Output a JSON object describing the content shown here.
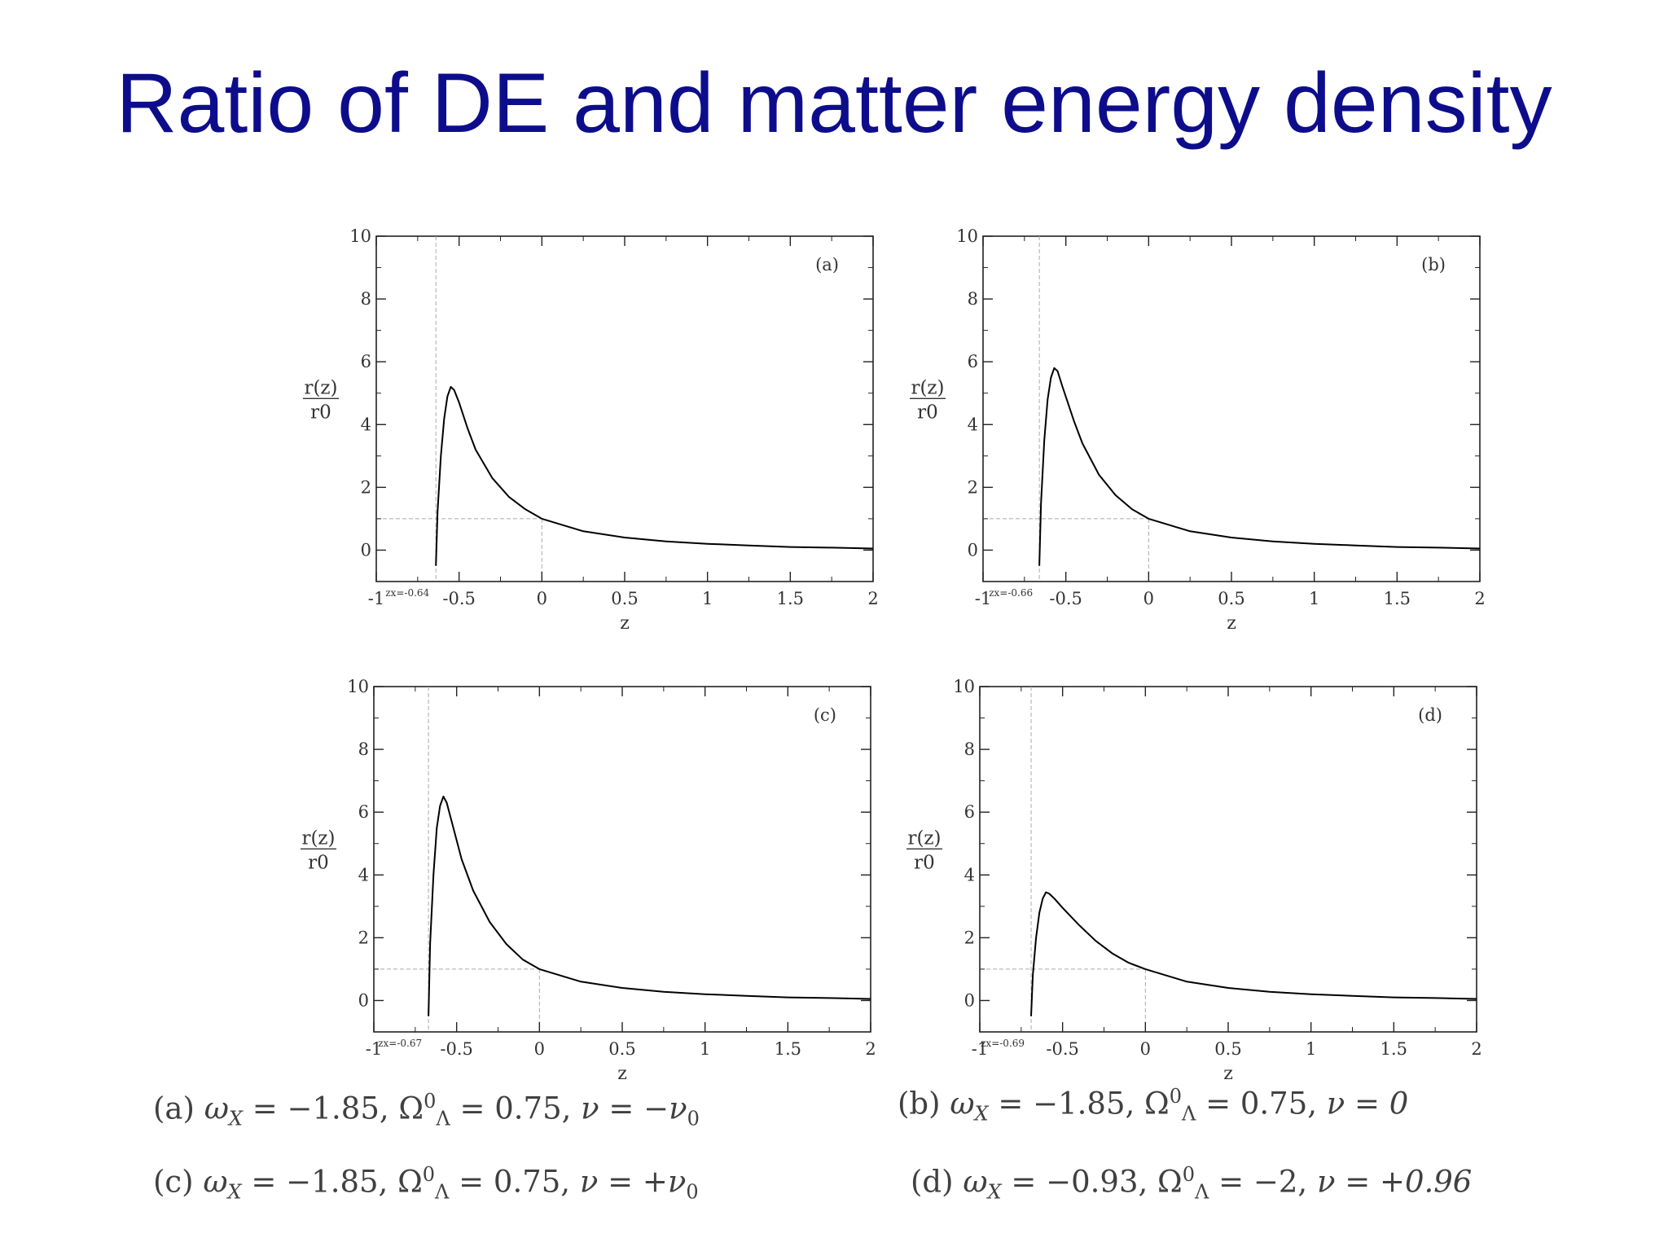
{
  "title": "Ratio of DE and matter energy density",
  "chart_data": [
    {
      "type": "line",
      "panel_label": "(a)",
      "xlabel": "z",
      "ylabel": "r(z)",
      "ylabel_den": "r0",
      "xlim": [
        -1,
        2
      ],
      "ylim": [
        -1,
        10
      ],
      "xticks": [
        -1,
        -0.5,
        0,
        0.5,
        1,
        1.5,
        2
      ],
      "xtick_labels": [
        "-1",
        "-0.5",
        "0",
        "0.5",
        "1",
        "1.5",
        "2"
      ],
      "yticks": [
        0,
        2,
        4,
        6,
        8,
        10
      ],
      "ytick_labels": [
        "0",
        "2",
        "4",
        "6",
        "8",
        "10"
      ],
      "zx": -0.64,
      "zx_label": "zx=-0.64",
      "series": [
        {
          "x": [
            -0.64,
            -0.63,
            -0.61,
            -0.59,
            -0.57,
            -0.55,
            -0.53,
            -0.5,
            -0.45,
            -0.4,
            -0.3,
            -0.2,
            -0.1,
            0,
            0.25,
            0.5,
            0.75,
            1,
            1.25,
            1.5,
            1.75,
            2
          ],
          "y": [
            -0.5,
            1.2,
            3.0,
            4.2,
            4.9,
            5.2,
            5.1,
            4.7,
            3.9,
            3.2,
            2.3,
            1.7,
            1.3,
            1.0,
            0.6,
            0.4,
            0.28,
            0.2,
            0.15,
            0.1,
            0.08,
            0.05
          ]
        }
      ]
    },
    {
      "type": "line",
      "panel_label": "(b)",
      "xlabel": "z",
      "ylabel": "r(z)",
      "ylabel_den": "r0",
      "xlim": [
        -1,
        2
      ],
      "ylim": [
        -1,
        10
      ],
      "xticks": [
        -1,
        -0.5,
        0,
        0.5,
        1,
        1.5,
        2
      ],
      "xtick_labels": [
        "-1",
        "-0.5",
        "0",
        "0.5",
        "1",
        "1.5",
        "2"
      ],
      "yticks": [
        0,
        2,
        4,
        6,
        8,
        10
      ],
      "ytick_labels": [
        "0",
        "2",
        "4",
        "6",
        "8",
        "10"
      ],
      "zx": -0.66,
      "zx_label": "zx=-0.66",
      "series": [
        {
          "x": [
            -0.66,
            -0.65,
            -0.63,
            -0.61,
            -0.59,
            -0.57,
            -0.55,
            -0.52,
            -0.45,
            -0.4,
            -0.3,
            -0.2,
            -0.1,
            0,
            0.25,
            0.5,
            0.75,
            1,
            1.25,
            1.5,
            1.75,
            2
          ],
          "y": [
            -0.5,
            1.5,
            3.5,
            4.8,
            5.5,
            5.8,
            5.7,
            5.2,
            4.1,
            3.4,
            2.4,
            1.75,
            1.3,
            1.0,
            0.6,
            0.4,
            0.28,
            0.2,
            0.15,
            0.1,
            0.08,
            0.05
          ]
        }
      ]
    },
    {
      "type": "line",
      "panel_label": "(c)",
      "xlabel": "z",
      "ylabel": "r(z)",
      "ylabel_den": "r0",
      "xlim": [
        -1,
        2
      ],
      "ylim": [
        -1,
        10
      ],
      "xticks": [
        -1,
        -0.5,
        0,
        0.5,
        1,
        1.5,
        2
      ],
      "xtick_labels": [
        "-1",
        "-0.5",
        "0",
        "0.5",
        "1",
        "1.5",
        "2"
      ],
      "yticks": [
        0,
        2,
        4,
        6,
        8,
        10
      ],
      "ytick_labels": [
        "0",
        "2",
        "4",
        "6",
        "8",
        "10"
      ],
      "zx": -0.67,
      "zx_label": "zx=-0.67",
      "series": [
        {
          "x": [
            -0.67,
            -0.66,
            -0.64,
            -0.62,
            -0.6,
            -0.58,
            -0.56,
            -0.53,
            -0.47,
            -0.4,
            -0.3,
            -0.2,
            -0.1,
            0,
            0.25,
            0.5,
            0.75,
            1,
            1.25,
            1.5,
            1.75,
            2
          ],
          "y": [
            -0.5,
            1.8,
            4.0,
            5.5,
            6.2,
            6.5,
            6.3,
            5.7,
            4.5,
            3.5,
            2.5,
            1.8,
            1.3,
            1.0,
            0.6,
            0.4,
            0.28,
            0.2,
            0.15,
            0.1,
            0.08,
            0.05
          ]
        }
      ]
    },
    {
      "type": "line",
      "panel_label": "(d)",
      "xlabel": "z",
      "ylabel": "r(z)",
      "ylabel_den": "r0",
      "xlim": [
        -1,
        2
      ],
      "ylim": [
        -1,
        10
      ],
      "xticks": [
        -1,
        -0.5,
        0,
        0.5,
        1,
        1.5,
        2
      ],
      "xtick_labels": [
        "-1",
        "-0.5",
        "0",
        "0.5",
        "1",
        "1.5",
        "2"
      ],
      "yticks": [
        0,
        2,
        4,
        6,
        8,
        10
      ],
      "ytick_labels": [
        "0",
        "2",
        "4",
        "6",
        "8",
        "10"
      ],
      "zx": -0.69,
      "zx_label": "zx=-0.69",
      "series": [
        {
          "x": [
            -0.69,
            -0.68,
            -0.66,
            -0.64,
            -0.62,
            -0.6,
            -0.58,
            -0.55,
            -0.5,
            -0.4,
            -0.3,
            -0.2,
            -0.1,
            0,
            0.25,
            0.5,
            0.75,
            1,
            1.25,
            1.5,
            1.75,
            2
          ],
          "y": [
            -0.5,
            0.8,
            2.0,
            2.8,
            3.25,
            3.45,
            3.4,
            3.25,
            2.95,
            2.4,
            1.9,
            1.5,
            1.2,
            1.0,
            0.6,
            0.4,
            0.28,
            0.2,
            0.15,
            0.1,
            0.08,
            0.05
          ]
        }
      ]
    }
  ],
  "captions": [
    {
      "label": "(a)",
      "w": "ω",
      "w_sub": "X",
      "w_val": " = −1.85, ",
      "om": "Ω",
      "om_sup": "0",
      "om_sub": "Λ",
      "om_val": " = 0.75, ",
      "nu": "ν = −ν",
      "nu_sub": "0"
    },
    {
      "label": "(b)",
      "w": "ω",
      "w_sub": "X",
      "w_val": " = −1.85, ",
      "om": "Ω",
      "om_sup": "0",
      "om_sub": "Λ",
      "om_val": " = 0.75, ",
      "nu": "ν = 0",
      "nu_sub": ""
    },
    {
      "label": "(c)",
      "w": "ω",
      "w_sub": "X",
      "w_val": " = −1.85, ",
      "om": "Ω",
      "om_sup": "0",
      "om_sub": "Λ",
      "om_val": " = 0.75, ",
      "nu": "ν = +ν",
      "nu_sub": "0"
    },
    {
      "label": "(d)",
      "w": "ω",
      "w_sub": "X",
      "w_val": " = −0.93, ",
      "om": "Ω",
      "om_sup": "0",
      "om_sub": "Λ",
      "om_val": " = −2, ",
      "nu": "ν = +0.96",
      "nu_sub": ""
    }
  ]
}
